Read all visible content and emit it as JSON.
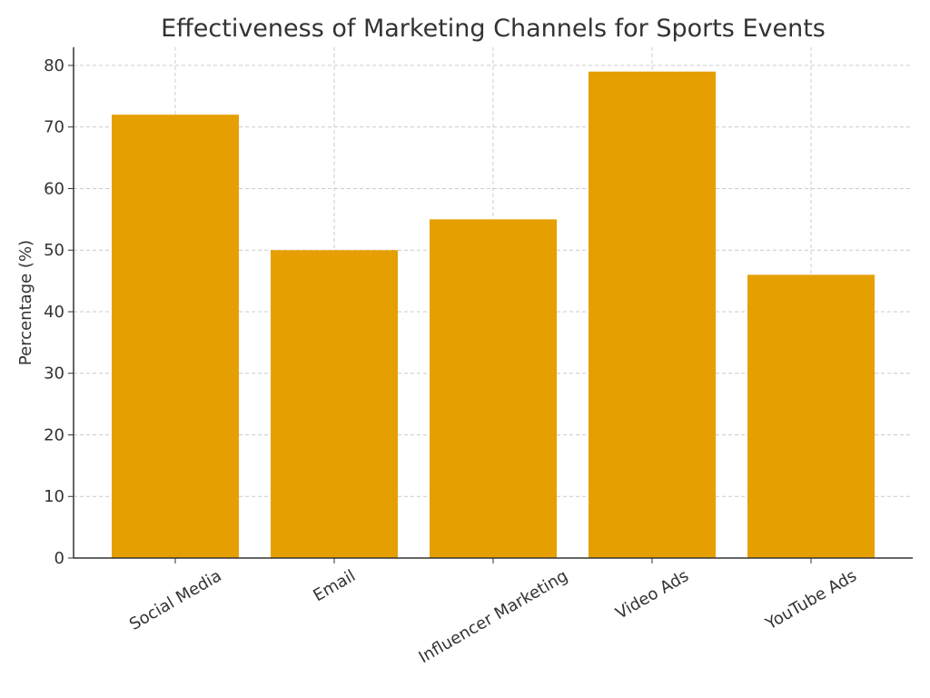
{
  "chart_data": {
    "type": "bar",
    "title": "Effectiveness of Marketing Channels for Sports Events",
    "y_label": "Percentage (%)",
    "categories": [
      "Social Media",
      "Email",
      "Influencer Marketing",
      "Video Ads",
      "YouTube Ads"
    ],
    "values": [
      72,
      50,
      55,
      79,
      46
    ],
    "color": "#e69f00",
    "ylim": [
      0,
      82.95
    ],
    "yticks": [
      0,
      10,
      20,
      30,
      40,
      50,
      60,
      70,
      80
    ],
    "grid": true
  }
}
